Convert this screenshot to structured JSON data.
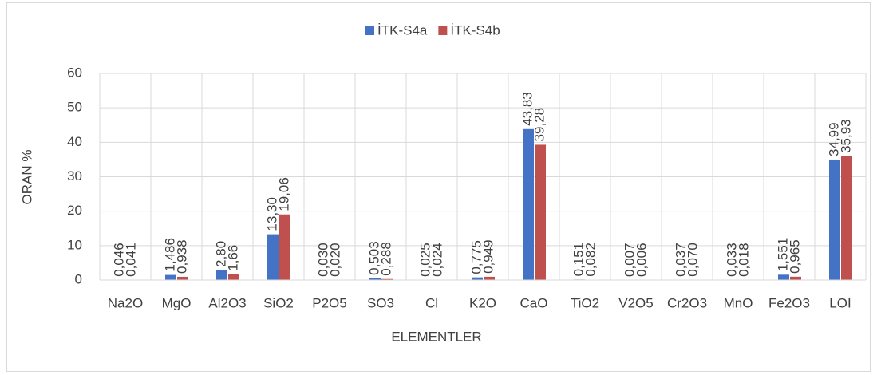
{
  "chart_data": {
    "type": "bar",
    "categories": [
      "Na2O",
      "MgO",
      "Al2O3",
      "SiO2",
      "P2O5",
      "SO3",
      "Cl",
      "K2O",
      "CaO",
      "TiO2",
      "V2O5",
      "Cr2O3",
      "MnO",
      "Fe2O3",
      "LOI"
    ],
    "series": [
      {
        "name": "İTK-S4a",
        "color": "#4472c4",
        "values": [
          0.046,
          1.486,
          2.8,
          13.3,
          0.03,
          0.503,
          0.025,
          0.775,
          43.83,
          0.151,
          0.007,
          0.037,
          0.033,
          1.551,
          34.99
        ],
        "value_labels": [
          "0,046",
          "1,486",
          "2,80",
          "13,30",
          "0,030",
          "0,503",
          "0,025",
          "0,775",
          "43,83",
          "0,151",
          "0,007",
          "0,037",
          "0,033",
          "1,551",
          "34,99"
        ]
      },
      {
        "name": "İTK-S4b",
        "color": "#c0504d",
        "values": [
          0.041,
          0.938,
          1.66,
          19.06,
          0.02,
          0.288,
          0.024,
          0.949,
          39.28,
          0.082,
          0.006,
          0.07,
          0.018,
          0.965,
          35.93
        ],
        "value_labels": [
          "0,041",
          "0,938",
          "1,66",
          "19,06",
          "0,020",
          "0,288",
          "0,024",
          "0,949",
          "39,28",
          "0,082",
          "0,006",
          "0,070",
          "0,018",
          "0,965",
          "35,93"
        ]
      }
    ],
    "xlabel": "ELEMENTLER",
    "ylabel": "ORAN %",
    "ylim": [
      0,
      60
    ],
    "yticks": [
      0,
      10,
      20,
      30,
      40,
      50,
      60
    ],
    "grid": true,
    "legend": "top"
  }
}
